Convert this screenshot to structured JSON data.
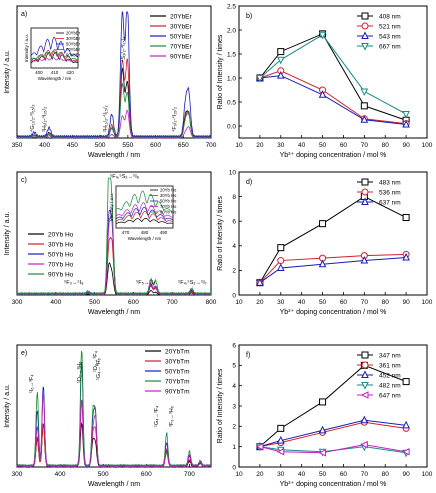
{
  "chart_data": [
    {
      "panel": "a)",
      "type": "line",
      "xlabel": "Wavelength / nm",
      "ylabel": "Intensity / a.u.",
      "xlim": [
        350,
        700
      ],
      "xticks": [
        350,
        400,
        450,
        500,
        550,
        600,
        650,
        700
      ],
      "legend": [
        "20YbEr",
        "30YbEr",
        "50YbEr",
        "70YbEr",
        "90YbEr"
      ],
      "colors": [
        "#000000",
        "#d0202a",
        "#1a1ab8",
        "#1a8a3a",
        "#c020c0"
      ],
      "peaks": [
        [
          381,
          0.03
        ],
        [
          408,
          0.06
        ],
        [
          521,
          0.15
        ],
        [
          540,
          0.85
        ],
        [
          549,
          0.95
        ],
        [
          654,
          0.25
        ],
        [
          660,
          0.35
        ]
      ],
      "scales": [
        0.55,
        0.6,
        1.0,
        0.45,
        0.2
      ],
      "annotations": [
        "⁴G₁₁/₂-⁴I₁₅/₂",
        "²H₉/₂-⁴I₁₅/₂",
        "²H₁₁/₂-⁴I₁₅/₂",
        "⁴S₃/₂-⁴I₁₅/₂",
        "⁴F₉/₂-⁴I₁₅/₂"
      ],
      "inset": {
        "xlabel": "Wavelength / nm",
        "ylabel": "Intensity / a.u.",
        "xticks": [
          400,
          410,
          420
        ],
        "legend": [
          "20YbEr",
          "30YbEr",
          "50YbEr",
          "70YbEr",
          "90YbEr"
        ]
      }
    },
    {
      "panel": "b)",
      "type": "line",
      "xlabel": "Yb³⁺ doping concentration / mol %",
      "ylabel": "Ratio of Intensity / times",
      "xlim": [
        10,
        100
      ],
      "ylim": [
        -0.25,
        2.5
      ],
      "xticks": [
        10,
        20,
        30,
        40,
        50,
        60,
        70,
        80,
        90,
        100
      ],
      "yticks": [
        0.0,
        0.5,
        1.0,
        1.5,
        2.0,
        2.5
      ],
      "yticklabels": [
        "0.0",
        "0.5",
        "1.0",
        "1.5",
        "2.0",
        "2.5"
      ],
      "x": [
        20,
        30,
        50,
        70,
        90
      ],
      "series": [
        {
          "name": "408 nm",
          "color": "#000000",
          "marker": "square",
          "values": [
            1.0,
            1.55,
            1.92,
            0.42,
            0.12
          ]
        },
        {
          "name": "521 nm",
          "color": "#d0202a",
          "marker": "circle",
          "values": [
            1.0,
            1.15,
            0.75,
            0.15,
            0.05
          ]
        },
        {
          "name": "543 nm",
          "color": "#1a1ab8",
          "marker": "triangle-up",
          "values": [
            1.0,
            1.05,
            0.65,
            0.13,
            0.03
          ]
        },
        {
          "name": "667 nm",
          "color": "#1a8a8a",
          "marker": "triangle-down",
          "values": [
            1.0,
            1.38,
            1.9,
            0.72,
            0.25
          ]
        }
      ]
    },
    {
      "panel": "c)",
      "type": "line",
      "xlabel": "Wavelength / nm",
      "ylabel": "Intensity / a.u.",
      "xlim": [
        300,
        800
      ],
      "xticks": [
        300,
        400,
        500,
        600,
        700,
        800
      ],
      "legend": [
        "20Yb Ho",
        "30Yb Ho",
        "50Yb Ho",
        "70Yb Ho",
        "90Yb Ho"
      ],
      "colors": [
        "#000000",
        "#d0202a",
        "#1a1ab8",
        "#c020c0",
        "#1a8a3a"
      ],
      "peaks": [
        [
          483,
          0.02
        ],
        [
          537,
          0.9
        ],
        [
          545,
          0.75
        ],
        [
          645,
          0.12
        ],
        [
          657,
          0.1
        ],
        [
          750,
          0.05
        ]
      ],
      "scales": [
        0.25,
        0.5,
        0.6,
        0.7,
        1.0
      ],
      "annotations": [
        "⁵F₄,⁵S₂→⁵I₈",
        "⁵F₃→⁵I₈",
        "⁵F₅→⁵I₈",
        "⁵F₄,⁵S₂→⁵I₇"
      ],
      "inset": {
        "xlabel": "Wavelength / nm",
        "ylabel": "Intensity / a.u.",
        "xticks": [
          470,
          480,
          490
        ],
        "legend": [
          "20Yb Ho",
          "30Yb Ho",
          "50Yb Ho",
          "70Yb Ho",
          "90Yb Ho"
        ]
      }
    },
    {
      "panel": "d)",
      "type": "line",
      "xlabel": "Yb³⁺ doping concentration / mol %",
      "ylabel": "Ratio of Intensity / times",
      "xlim": [
        10,
        100
      ],
      "ylim": [
        0,
        10
      ],
      "xticks": [
        10,
        20,
        30,
        40,
        50,
        60,
        70,
        80,
        90,
        100
      ],
      "yticks": [
        0,
        2,
        4,
        6,
        8,
        10
      ],
      "yticklabels": [
        "0",
        "2",
        "4",
        "6",
        "8",
        "10"
      ],
      "x": [
        20,
        30,
        50,
        70,
        90
      ],
      "series": [
        {
          "name": "483 nm",
          "color": "#000000",
          "marker": "square",
          "values": [
            1.0,
            3.85,
            5.8,
            8.0,
            6.3
          ]
        },
        {
          "name": "536 nm",
          "color": "#d0202a",
          "marker": "circle",
          "values": [
            1.0,
            2.8,
            3.0,
            3.2,
            3.3
          ]
        },
        {
          "name": "637 nm",
          "color": "#1a1ab8",
          "marker": "triangle-up",
          "values": [
            1.0,
            2.2,
            2.5,
            2.8,
            3.05
          ]
        }
      ]
    },
    {
      "panel": "e)",
      "type": "line",
      "xlabel": "Wavelength / nm",
      "ylabel": "Intensity / a.u.",
      "xlim": [
        300,
        750
      ],
      "xticks": [
        300,
        400,
        500,
        600,
        700
      ],
      "legend": [
        "20YbTm",
        "30YbTm",
        "50YbTm",
        "70YbTm",
        "90YbTm"
      ],
      "colors": [
        "#000000",
        "#d0202a",
        "#1a1ab8",
        "#1a8a3a",
        "#c020c0"
      ],
      "peaks": [
        [
          347,
          0.55
        ],
        [
          361,
          0.75
        ],
        [
          450,
          0.95
        ],
        [
          476,
          0.4
        ],
        [
          482,
          0.5
        ],
        [
          647,
          0.25
        ],
        [
          700,
          0.12
        ],
        [
          725,
          0.05
        ]
      ],
      "scales": [
        0.45,
        0.55,
        0.8,
        1.0,
        0.7
      ],
      "annotations": [
        "¹I₆→³F₄",
        "¹D₂→³H₆",
        "¹D₂→³F₄",
        "¹G₄→³H₆",
        "¹G₄→³F₄",
        "³F₃→³H₆"
      ]
    },
    {
      "panel": "f)",
      "type": "line",
      "xlabel": "Yb³⁺ doping concentration / mol %",
      "ylabel": "Ratio of Intensity / times",
      "xlim": [
        10,
        100
      ],
      "ylim": [
        0,
        6
      ],
      "xticks": [
        10,
        20,
        30,
        40,
        50,
        60,
        70,
        80,
        90,
        100
      ],
      "yticks": [
        0,
        1,
        2,
        3,
        4,
        5,
        6
      ],
      "yticklabels": [
        "0",
        "1",
        "2",
        "3",
        "4",
        "5",
        "6"
      ],
      "x": [
        20,
        30,
        50,
        70,
        90
      ],
      "series": [
        {
          "name": "347 nm",
          "color": "#000000",
          "marker": "square",
          "values": [
            1.0,
            1.9,
            3.2,
            5.0,
            4.2
          ]
        },
        {
          "name": "361 nm",
          "color": "#d0202a",
          "marker": "circle",
          "values": [
            1.0,
            1.2,
            1.7,
            2.2,
            1.9
          ]
        },
        {
          "name": "452 nm",
          "color": "#1a1ab8",
          "marker": "triangle-up",
          "values": [
            1.0,
            1.3,
            1.8,
            2.3,
            2.05
          ]
        },
        {
          "name": "482 nm",
          "color": "#1a8a8a",
          "marker": "triangle-down",
          "values": [
            1.0,
            0.85,
            0.75,
            1.0,
            0.7
          ]
        },
        {
          "name": "647 nm",
          "color": "#c020c0",
          "marker": "triangle-left",
          "values": [
            1.0,
            0.75,
            0.7,
            1.1,
            0.75
          ]
        }
      ]
    }
  ]
}
